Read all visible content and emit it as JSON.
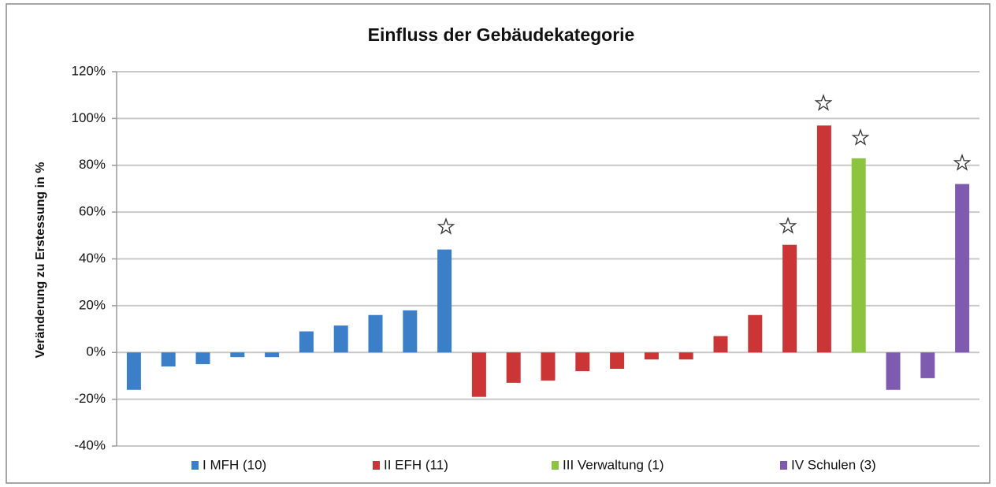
{
  "chart_data": {
    "type": "bar",
    "title": "Einfluss der Gebäudekategorie",
    "y_label": "Veränderung zu Erstessung in %",
    "categories": [
      null,
      null,
      null,
      null,
      null,
      null,
      null,
      null,
      null,
      null,
      null,
      null,
      null,
      null,
      null,
      null,
      null,
      null,
      null,
      null,
      null,
      null,
      null,
      null,
      null
    ],
    "series": [
      {
        "name": "I MFH (10)",
        "color": "#3b7fc9",
        "values": [
          -16,
          -6,
          -5,
          -2,
          -2,
          9,
          11.5,
          16,
          18,
          44,
          null,
          null,
          null,
          null,
          null,
          null,
          null,
          null,
          null,
          null,
          null,
          null,
          null,
          null,
          null
        ]
      },
      {
        "name": "II EFH (11)",
        "color": "#cc3535",
        "values": [
          null,
          null,
          null,
          null,
          null,
          null,
          null,
          null,
          null,
          null,
          -19,
          -13,
          -12,
          -8,
          -7,
          -3,
          -3,
          7,
          16,
          46,
          97,
          null,
          null,
          null,
          null
        ]
      },
      {
        "name": "III Verwaltung (1)",
        "color": "#8cc43f",
        "values": [
          null,
          null,
          null,
          null,
          null,
          null,
          null,
          null,
          null,
          null,
          null,
          null,
          null,
          null,
          null,
          null,
          null,
          null,
          null,
          null,
          null,
          83,
          null,
          null,
          null
        ]
      },
      {
        "name": "IV Schulen (3)",
        "color": "#7f5bb0",
        "values": [
          null,
          null,
          null,
          null,
          null,
          null,
          null,
          null,
          null,
          null,
          null,
          null,
          null,
          null,
          null,
          null,
          null,
          null,
          null,
          null,
          null,
          null,
          -16,
          -11,
          72
        ]
      }
    ],
    "ylim": [
      -40,
      120
    ],
    "yticks": [
      {
        "value": -40,
        "label": "-40%"
      },
      {
        "value": -20,
        "label": "-20%"
      },
      {
        "value": 0,
        "label": "0%"
      },
      {
        "value": 20,
        "label": "20%"
      },
      {
        "value": 40,
        "label": "40%"
      },
      {
        "value": 60,
        "label": "60%"
      },
      {
        "value": 80,
        "label": "80%"
      },
      {
        "value": 100,
        "label": "100%"
      },
      {
        "value": 120,
        "label": "120%"
      }
    ],
    "grid": true
  }
}
